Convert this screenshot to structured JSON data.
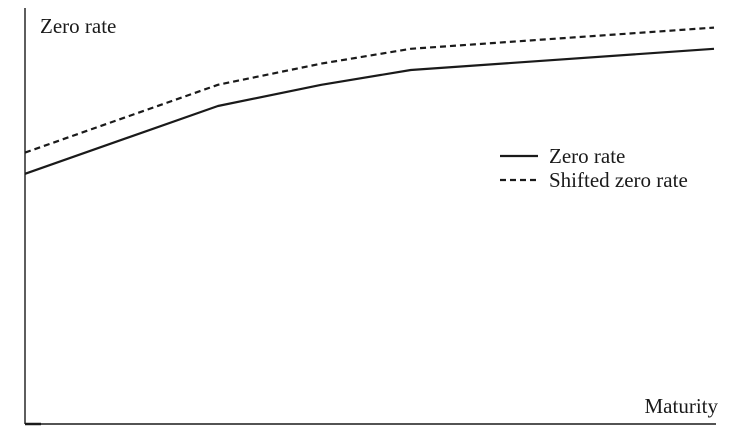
{
  "chart_data": {
    "type": "line",
    "ylabel": "Zero rate",
    "xlabel": "Maturity",
    "xlim": [
      0,
      10
    ],
    "ylim": [
      0,
      10
    ],
    "x": [
      0,
      2.8,
      4.3,
      5.6,
      10
    ],
    "series": [
      {
        "name": "Zero rate",
        "style": "solid",
        "values": [
          5.9,
          7.5,
          8.0,
          8.35,
          8.85
        ]
      },
      {
        "name": "Shifted zero rate",
        "style": "dashed",
        "values": [
          6.4,
          8.0,
          8.5,
          8.85,
          9.35
        ]
      }
    ],
    "legend_position": "right",
    "grid": false,
    "color": "#1a1a1a"
  }
}
